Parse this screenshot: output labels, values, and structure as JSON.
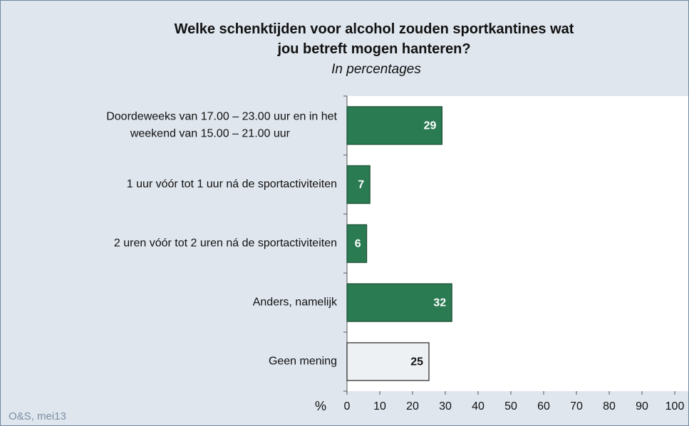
{
  "chart_data": {
    "type": "barh",
    "title": "Welke schenktijden voor alcohol zouden sportkantines wat jou betreft mogen hanteren?",
    "subtitle": "In percentages",
    "categories": [
      "Doordeweeks van 17.00 – 23.00 uur en in het\nweekend van 15.00 – 21.00 uur",
      "1 uur vóór tot 1 uur ná de sportactiviteiten",
      "2 uren vóór tot 2 uren ná de sportactiviteiten",
      "Anders, namelijk",
      "Geen mening"
    ],
    "values": [
      29,
      7,
      6,
      32,
      25
    ],
    "colors": [
      "#2a7a52",
      "#2a7a52",
      "#2a7a52",
      "#2a7a52",
      "#eef1f4"
    ],
    "xlabel": "%",
    "xlim": [
      0,
      100
    ],
    "xticks": [
      0,
      10,
      20,
      30,
      40,
      50,
      60,
      70,
      80,
      90,
      100
    ],
    "grid": false,
    "source": "O&S, mei13"
  }
}
